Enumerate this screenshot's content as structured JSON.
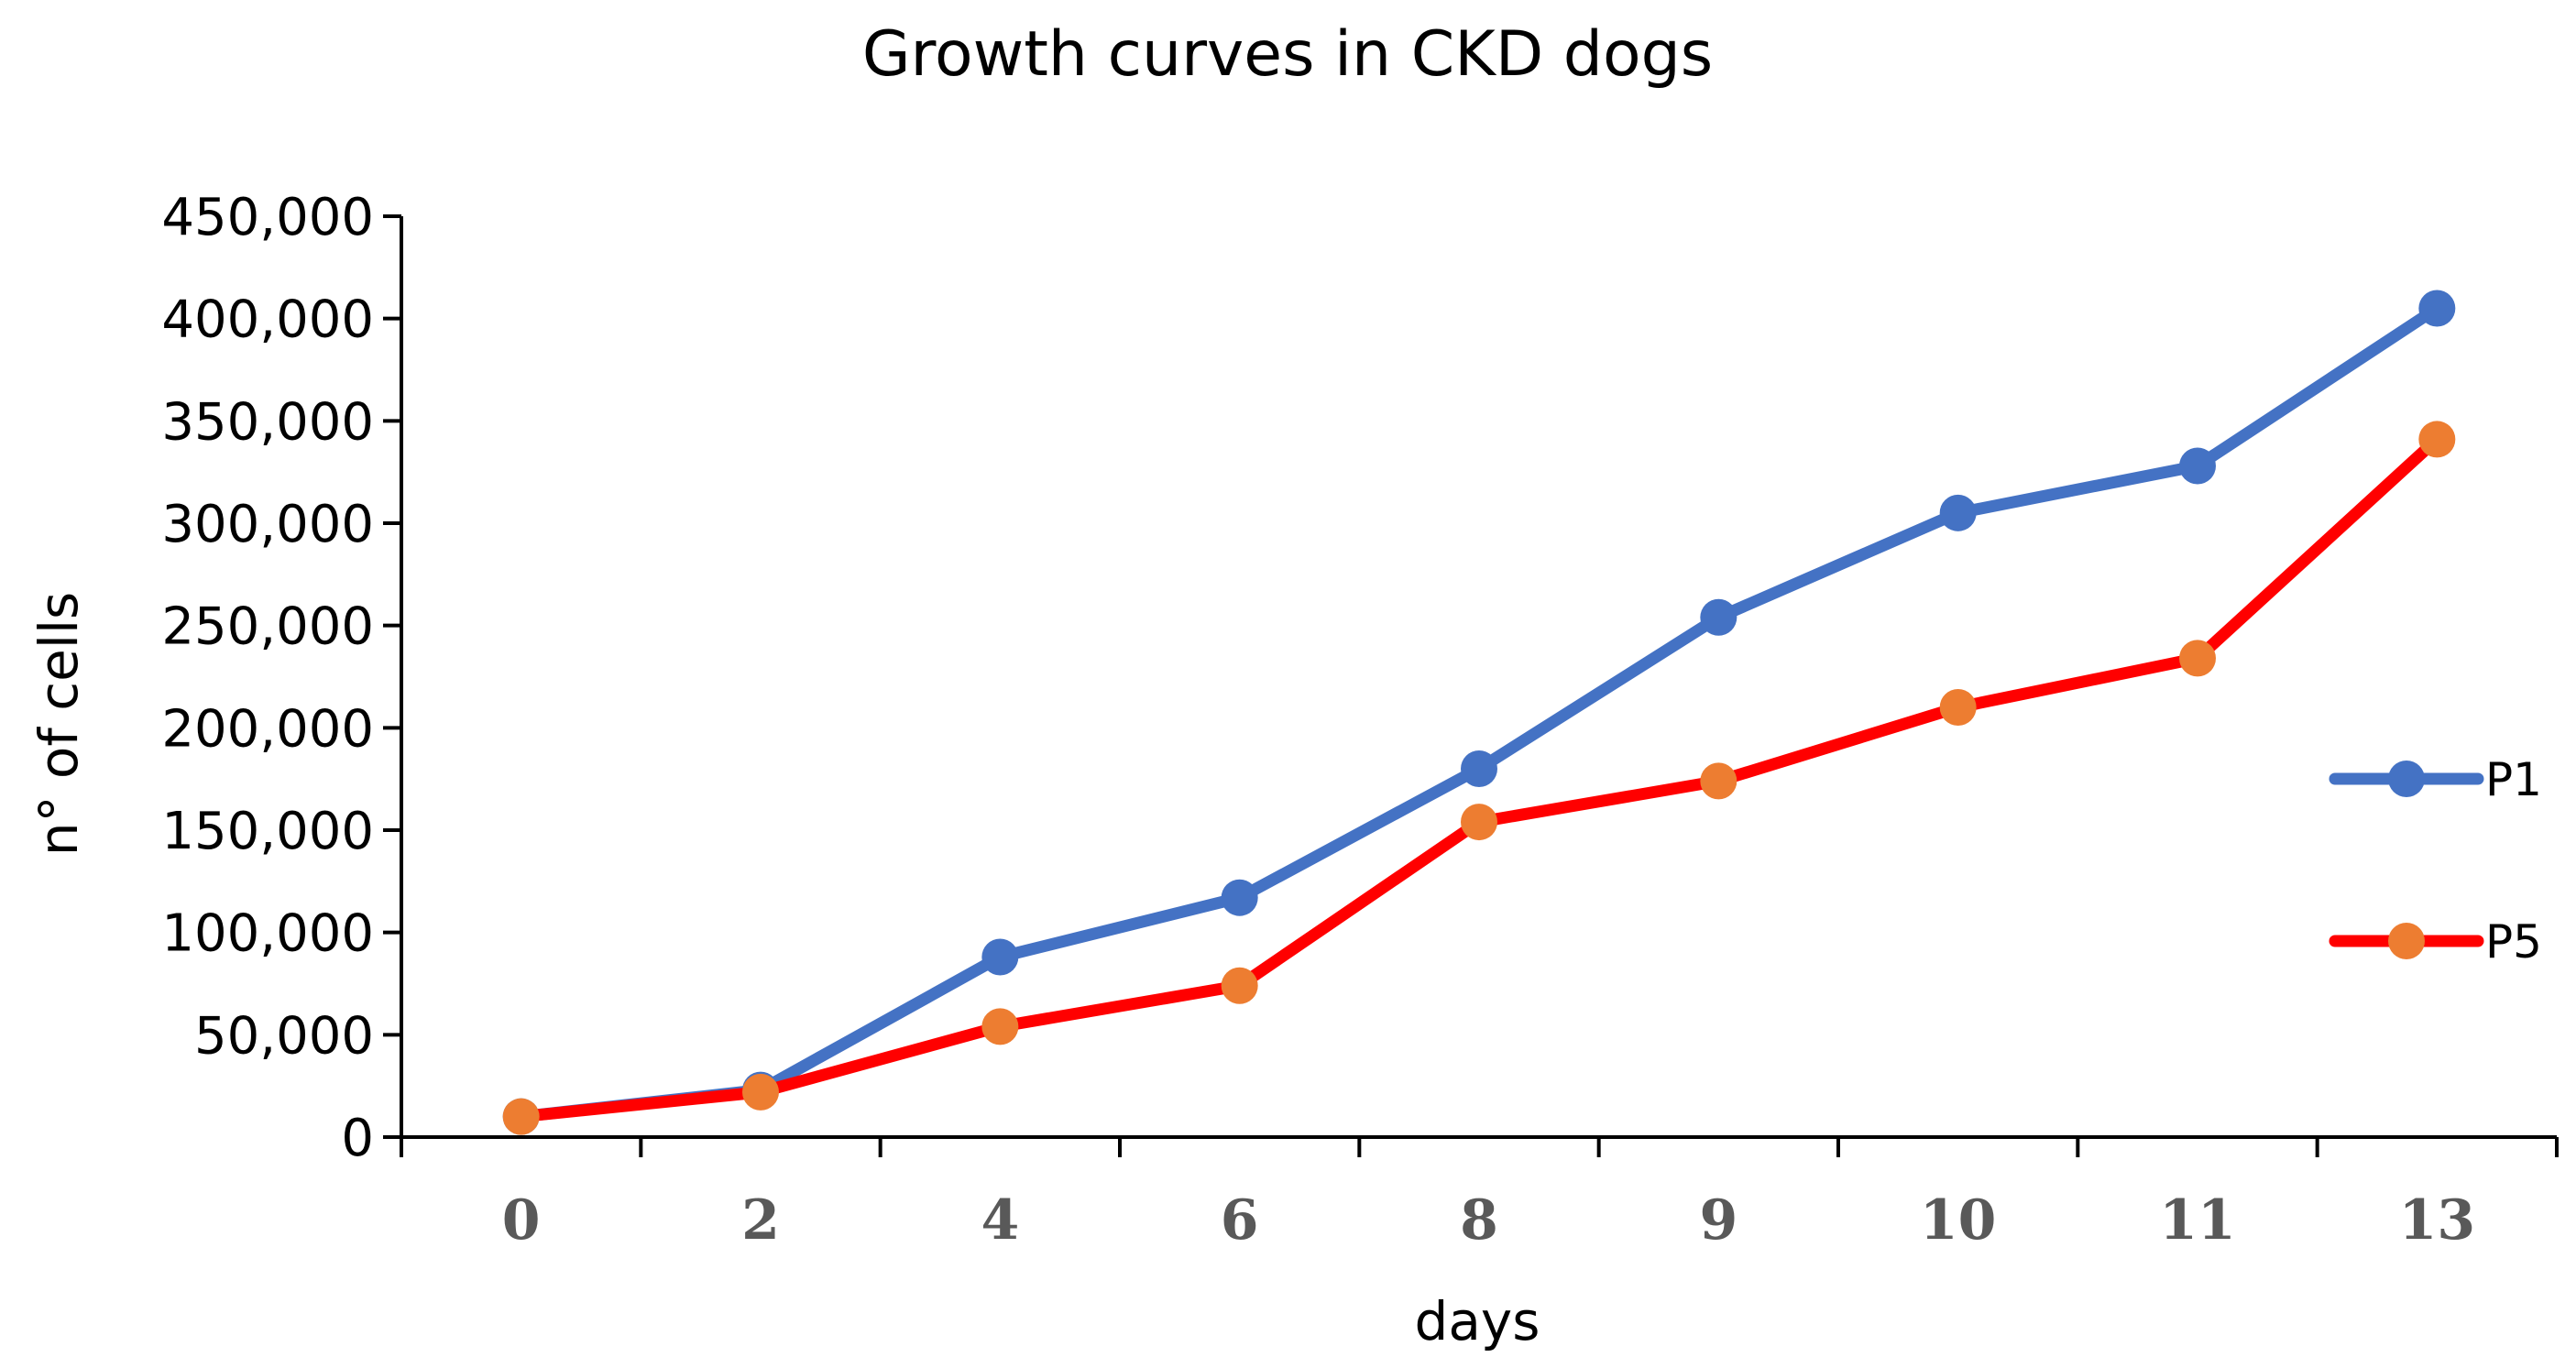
{
  "chart_data": {
    "type": "line",
    "title": "Growth curves in CKD dogs",
    "xlabel": "days",
    "ylabel": "n° of cells",
    "categories": [
      "0",
      "2",
      "4",
      "6",
      "8",
      "9",
      "10",
      "11",
      "13"
    ],
    "ylim": [
      0,
      450000
    ],
    "yticks": [
      0,
      50000,
      100000,
      150000,
      200000,
      250000,
      300000,
      350000,
      400000,
      450000
    ],
    "ytick_labels": [
      "0",
      "50,000",
      "100,000",
      "150,000",
      "200,000",
      "250,000",
      "300,000",
      "350,000",
      "400,000",
      "450,000"
    ],
    "grid": false,
    "legend_position": "right",
    "series": [
      {
        "name": "P1",
        "line_color": "#4472C4",
        "marker_color": "#4472C4",
        "values": [
          10000,
          23000,
          88000,
          117000,
          180000,
          254000,
          305000,
          328000,
          405000
        ]
      },
      {
        "name": "P5",
        "line_color": "#FF0000",
        "marker_color": "#ED7D31",
        "values": [
          10000,
          22000,
          54000,
          74000,
          154000,
          174000,
          210000,
          234000,
          341000
        ]
      }
    ]
  }
}
